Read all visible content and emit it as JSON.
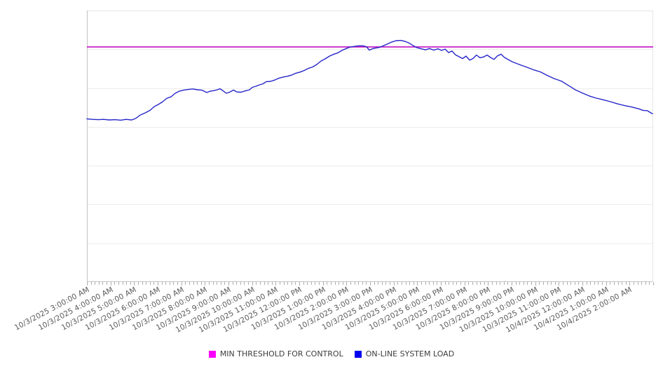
{
  "chart_data": {
    "type": "line",
    "title": "",
    "xlabel": "",
    "ylabel": "",
    "grid": true,
    "legend_position": "bottom-center",
    "y_axis": {
      "labels_visible": false,
      "range_relative_pct": [
        0,
        100
      ],
      "gridline_divisions": 7
    },
    "hours_span": 24,
    "minor_ticks_per_hour": 6,
    "x_labels": [
      "10/3/2025 3:00:00 AM",
      "10/3/2025 4:00:00 AM",
      "10/3/2025 5:00:00 AM",
      "10/3/2025 6:00:00 AM",
      "10/3/2025 7:00:00 AM",
      "10/3/2025 8:00:00 AM",
      "10/3/2025 9:00:00 AM",
      "10/3/2025 10:00:00 AM",
      "10/3/2025 11:00:00 AM",
      "10/3/2025 12:00:00 PM",
      "10/3/2025 1:00:00 PM",
      "10/3/2025 2:00:00 PM",
      "10/3/2025 3:00:00 PM",
      "10/3/2025 4:00:00 PM",
      "10/3/2025 5:00:00 PM",
      "10/3/2025 6:00:00 PM",
      "10/3/2025 7:00:00 PM",
      "10/3/2025 8:00:00 PM",
      "10/3/2025 9:00:00 PM",
      "10/3/2025 10:00:00 PM",
      "10/3/2025 11:00:00 PM",
      "10/4/2025 12:00:00 AM",
      "10/4/2025 1:00:00 AM",
      "10/4/2025 2:00:00 AM"
    ],
    "series": [
      {
        "name": "MIN THRESHOLD FOR CONTROL",
        "type": "threshold",
        "line_color": "#c522c5",
        "legend_color": "#ff00ff",
        "value_pct": 86.6
      },
      {
        "name": "ON-LINE SYSTEM LOAD",
        "type": "line",
        "line_color": "#2626c9",
        "legend_color": "#0000ee",
        "points_hour_pct": [
          [
            0,
            60.1
          ],
          [
            0.24,
            59.9
          ],
          [
            0.48,
            59.8
          ],
          [
            0.71,
            59.9
          ],
          [
            0.95,
            59.7
          ],
          [
            1.19,
            59.8
          ],
          [
            1.43,
            59.6
          ],
          [
            1.66,
            59.9
          ],
          [
            1.9,
            59.7
          ],
          [
            2.08,
            60.3
          ],
          [
            2.26,
            61.5
          ],
          [
            2.47,
            62.3
          ],
          [
            2.67,
            63.2
          ],
          [
            2.85,
            64.6
          ],
          [
            3.03,
            65.4
          ],
          [
            3.21,
            66.4
          ],
          [
            3.39,
            67.7
          ],
          [
            3.56,
            68.2
          ],
          [
            3.74,
            69.5
          ],
          [
            3.92,
            70.3
          ],
          [
            4.1,
            70.7
          ],
          [
            4.28,
            70.9
          ],
          [
            4.49,
            71.1
          ],
          [
            4.69,
            70.8
          ],
          [
            4.87,
            70.7
          ],
          [
            5.08,
            69.8
          ],
          [
            5.23,
            70.3
          ],
          [
            5.38,
            70.5
          ],
          [
            5.52,
            70.8
          ],
          [
            5.64,
            71.2
          ],
          [
            5.76,
            70.5
          ],
          [
            5.91,
            69.5
          ],
          [
            6.06,
            70
          ],
          [
            6.21,
            70.7
          ],
          [
            6.36,
            70
          ],
          [
            6.53,
            69.9
          ],
          [
            6.71,
            70.4
          ],
          [
            6.89,
            70.8
          ],
          [
            7.01,
            71.7
          ],
          [
            7.16,
            72.1
          ],
          [
            7.31,
            72.6
          ],
          [
            7.46,
            73
          ],
          [
            7.6,
            73.8
          ],
          [
            7.78,
            73.9
          ],
          [
            7.96,
            74.4
          ],
          [
            8.14,
            75.1
          ],
          [
            8.32,
            75.5
          ],
          [
            8.5,
            75.8
          ],
          [
            8.67,
            76.2
          ],
          [
            8.85,
            76.9
          ],
          [
            9.03,
            77.3
          ],
          [
            9.21,
            77.9
          ],
          [
            9.39,
            78.7
          ],
          [
            9.56,
            79.2
          ],
          [
            9.74,
            80.1
          ],
          [
            9.92,
            81.4
          ],
          [
            10.1,
            82.2
          ],
          [
            10.28,
            83.2
          ],
          [
            10.46,
            83.9
          ],
          [
            10.63,
            84.4
          ],
          [
            10.81,
            85.3
          ],
          [
            10.99,
            86
          ],
          [
            11.17,
            86.6
          ],
          [
            11.35,
            86.8
          ],
          [
            11.52,
            87
          ],
          [
            11.7,
            87
          ],
          [
            11.85,
            86.7
          ],
          [
            11.97,
            85.4
          ],
          [
            12.09,
            85.9
          ],
          [
            12.24,
            86.2
          ],
          [
            12.39,
            86.4
          ],
          [
            12.56,
            87
          ],
          [
            12.74,
            87.7
          ],
          [
            12.92,
            88.4
          ],
          [
            13.1,
            88.9
          ],
          [
            13.31,
            89
          ],
          [
            13.49,
            88.6
          ],
          [
            13.66,
            88
          ],
          [
            13.84,
            87
          ],
          [
            13.99,
            86.3
          ],
          [
            14.17,
            85.9
          ],
          [
            14.35,
            85.5
          ],
          [
            14.52,
            86
          ],
          [
            14.7,
            85.4
          ],
          [
            14.88,
            85.9
          ],
          [
            15.03,
            85.3
          ],
          [
            15.18,
            85.8
          ],
          [
            15.33,
            84.5
          ],
          [
            15.47,
            85.1
          ],
          [
            15.62,
            83.7
          ],
          [
            15.77,
            83
          ],
          [
            15.92,
            82.3
          ],
          [
            16.07,
            83.2
          ],
          [
            16.22,
            81.7
          ],
          [
            16.36,
            82.3
          ],
          [
            16.51,
            83.6
          ],
          [
            16.66,
            82.6
          ],
          [
            16.81,
            82.9
          ],
          [
            16.96,
            83.6
          ],
          [
            17.11,
            82.7
          ],
          [
            17.25,
            82
          ],
          [
            17.4,
            83.3
          ],
          [
            17.55,
            83.9
          ],
          [
            17.7,
            82.7
          ],
          [
            17.88,
            81.8
          ],
          [
            18.03,
            81.1
          ],
          [
            18.33,
            80.1
          ],
          [
            18.62,
            79.2
          ],
          [
            18.92,
            78.2
          ],
          [
            19.22,
            77.4
          ],
          [
            19.51,
            76.1
          ],
          [
            19.81,
            74.9
          ],
          [
            20.11,
            74
          ],
          [
            20.41,
            72.4
          ],
          [
            20.7,
            70.8
          ],
          [
            21,
            69.6
          ],
          [
            21.3,
            68.5
          ],
          [
            21.6,
            67.7
          ],
          [
            21.89,
            67.1
          ],
          [
            22.19,
            66.4
          ],
          [
            22.49,
            65.6
          ],
          [
            22.78,
            65
          ],
          [
            23.08,
            64.5
          ],
          [
            23.38,
            63.8
          ],
          [
            23.58,
            63.2
          ],
          [
            23.76,
            63.1
          ],
          [
            23.88,
            62.4
          ],
          [
            23.97,
            62
          ]
        ]
      }
    ]
  }
}
